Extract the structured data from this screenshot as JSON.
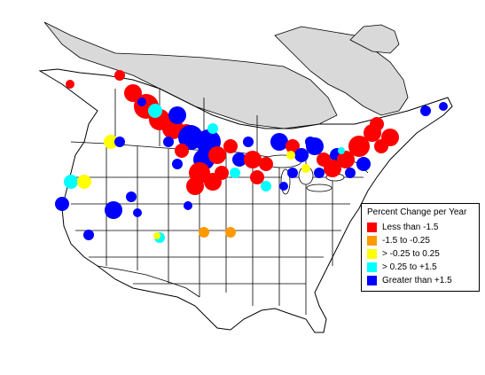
{
  "legend": {
    "title": "Percent Change per Year",
    "items": [
      {
        "label": "Less than -1.5",
        "color": "#ff0000"
      },
      {
        "label": "-1.5 to -0.25",
        "color": "#ff9900"
      },
      {
        "label": "> -0.25 to 0.25",
        "color": "#ffff00"
      },
      {
        "label": "> 0.25 to +1.5",
        "color": "#00ffff"
      },
      {
        "label": "Greater than +1.5",
        "color": "#0000ff"
      }
    ]
  },
  "colors": {
    "land": "#ffffff",
    "no_data_region": "#d9d9d9",
    "boundaries": "#000000"
  }
}
